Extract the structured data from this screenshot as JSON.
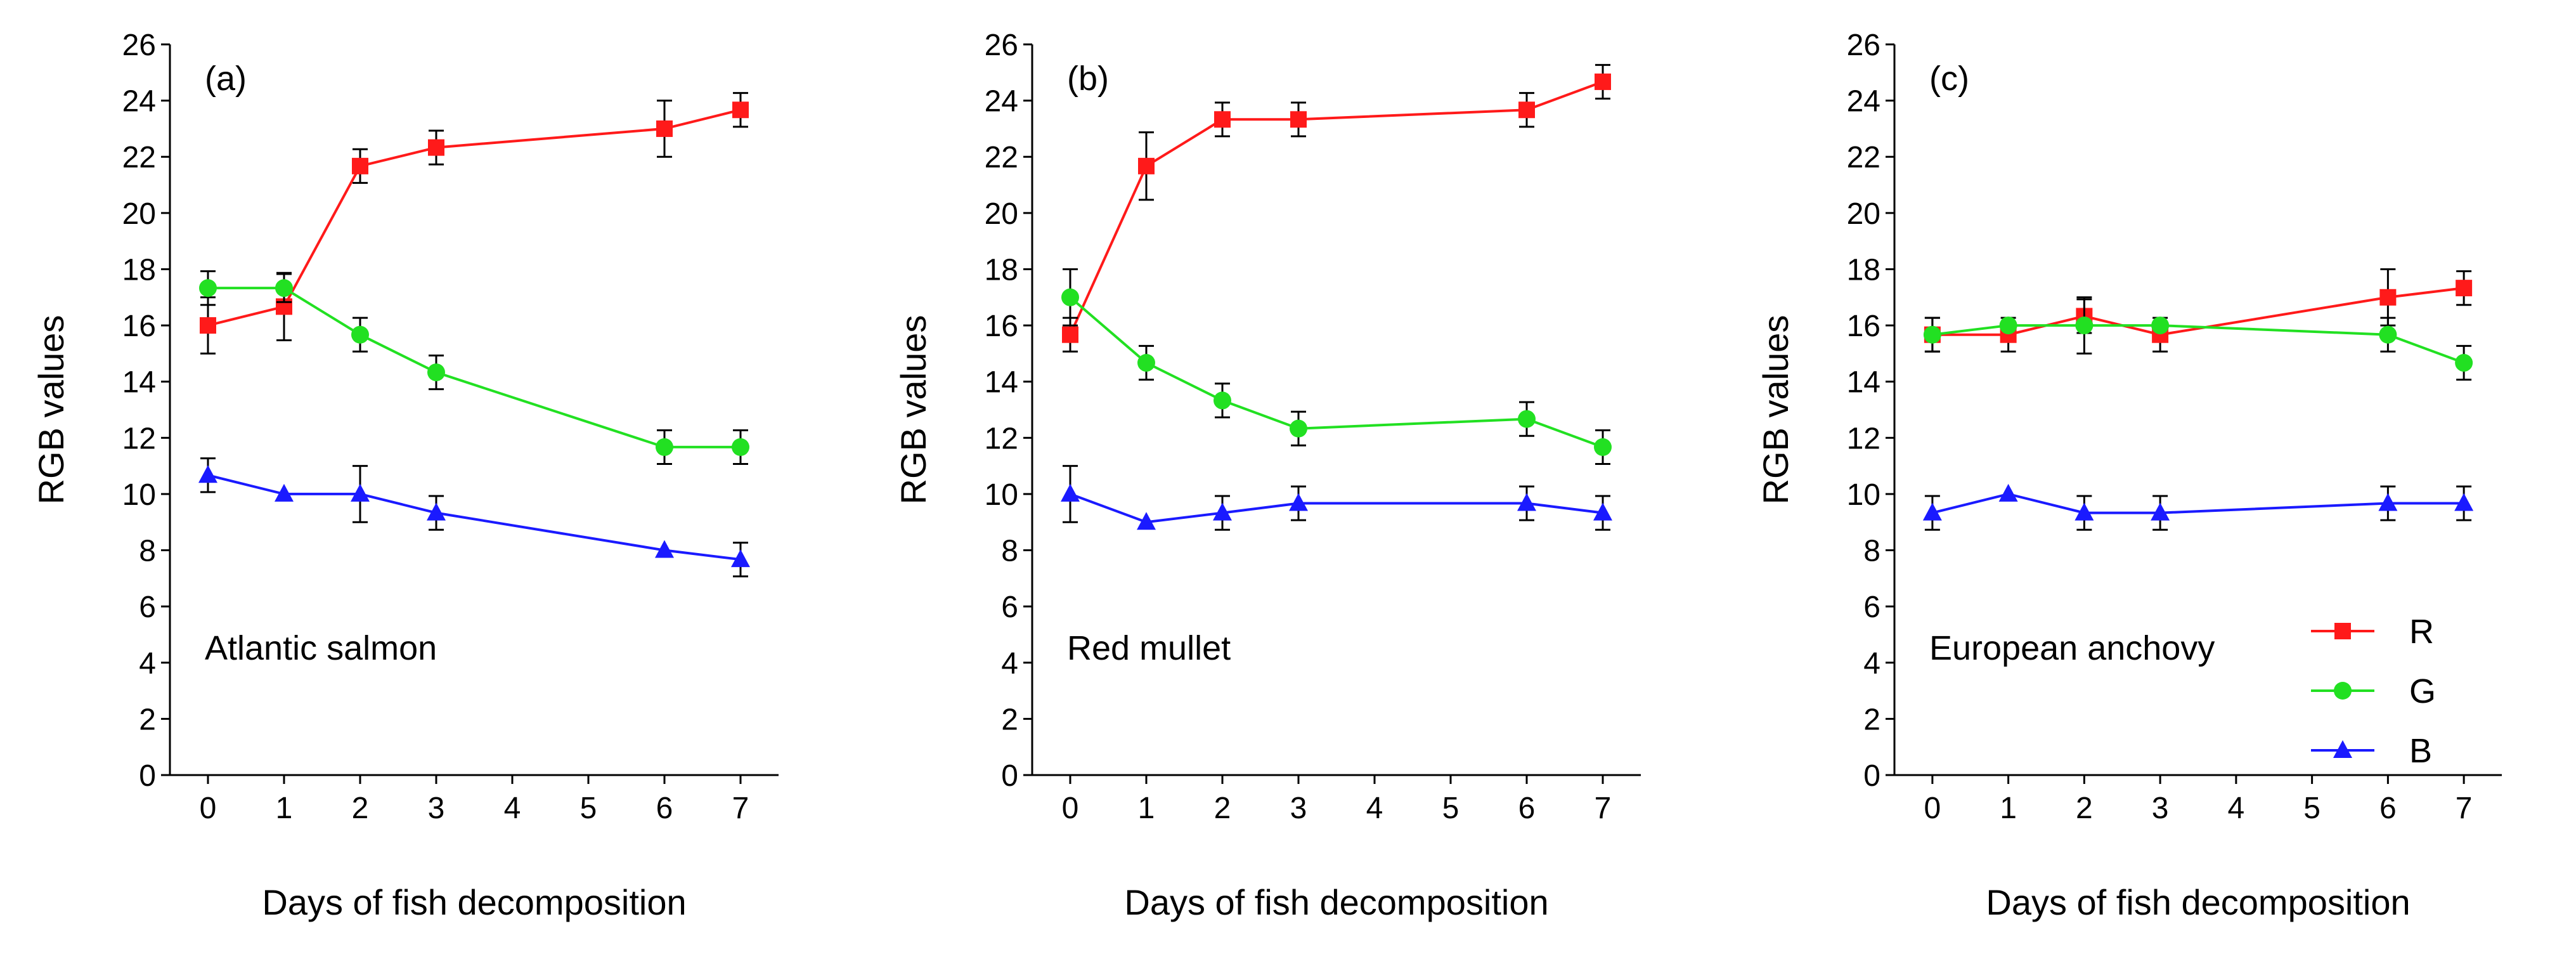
{
  "colors": {
    "R": "#ff1a1a",
    "G": "#22e022",
    "B": "#1a1aff",
    "axis": "#000000"
  },
  "chart_data": [
    {
      "type": "line",
      "panel_label": "(a)",
      "species": "Atlantic salmon",
      "xlabel": "Days of fish decomposition",
      "ylabel": "RGB values",
      "x": [
        0,
        1,
        2,
        3,
        6,
        7
      ],
      "x_ticks": [
        "0",
        "1",
        "2",
        "3",
        "4",
        "5",
        "6",
        "7"
      ],
      "xlim": [
        -0.5,
        7.5
      ],
      "ylim": [
        0,
        26
      ],
      "y_ticks": [
        "0",
        "2",
        "4",
        "6",
        "8",
        "10",
        "12",
        "14",
        "16",
        "18",
        "20",
        "22",
        "24",
        "26"
      ],
      "series": [
        {
          "name": "R",
          "values": [
            16.0,
            16.67,
            21.67,
            22.33,
            23.0,
            23.67
          ],
          "errors": [
            1.0,
            1.2,
            0.6,
            0.6,
            1.0,
            0.6
          ]
        },
        {
          "name": "G",
          "values": [
            17.33,
            17.33,
            15.67,
            14.33,
            11.67,
            11.67
          ],
          "errors": [
            0.6,
            0.5,
            0.6,
            0.6,
            0.6,
            0.6
          ]
        },
        {
          "name": "B",
          "values": [
            10.67,
            10.0,
            10.0,
            9.33,
            8.0,
            7.67
          ],
          "errors": [
            0.6,
            0.0,
            1.0,
            0.6,
            0.0,
            0.6
          ]
        }
      ]
    },
    {
      "type": "line",
      "panel_label": "(b)",
      "species": "Red mullet",
      "xlabel": "Days of fish decomposition",
      "ylabel": "RGB values",
      "x": [
        0,
        1,
        2,
        3,
        6,
        7
      ],
      "x_ticks": [
        "0",
        "1",
        "2",
        "3",
        "4",
        "5",
        "6",
        "7"
      ],
      "xlim": [
        -0.5,
        7.5
      ],
      "ylim": [
        0,
        26
      ],
      "y_ticks": [
        "0",
        "2",
        "4",
        "6",
        "8",
        "10",
        "12",
        "14",
        "16",
        "18",
        "20",
        "22",
        "24",
        "26"
      ],
      "series": [
        {
          "name": "R",
          "values": [
            15.67,
            21.67,
            23.33,
            23.33,
            23.67,
            24.67
          ],
          "errors": [
            0.6,
            1.2,
            0.6,
            0.6,
            0.6,
            0.6
          ]
        },
        {
          "name": "G",
          "values": [
            17.0,
            14.67,
            13.33,
            12.33,
            12.67,
            11.67
          ],
          "errors": [
            1.0,
            0.6,
            0.6,
            0.6,
            0.6,
            0.6
          ]
        },
        {
          "name": "B",
          "values": [
            10.0,
            9.0,
            9.33,
            9.67,
            9.67,
            9.33
          ],
          "errors": [
            1.0,
            0.0,
            0.6,
            0.6,
            0.6,
            0.6
          ]
        }
      ]
    },
    {
      "type": "line",
      "panel_label": "(c)",
      "species": "European anchovy",
      "xlabel": "Days of fish decomposition",
      "ylabel": "RGB values",
      "x": [
        0,
        1,
        2,
        3,
        6,
        7
      ],
      "x_ticks": [
        "0",
        "1",
        "2",
        "3",
        "4",
        "5",
        "6",
        "7"
      ],
      "xlim": [
        -0.5,
        7.5
      ],
      "ylim": [
        0,
        26
      ],
      "y_ticks": [
        "0",
        "2",
        "4",
        "6",
        "8",
        "10",
        "12",
        "14",
        "16",
        "18",
        "20",
        "22",
        "24",
        "26"
      ],
      "legend": [
        "R",
        "G",
        "B"
      ],
      "legend_position": "bottom-right",
      "series": [
        {
          "name": "R",
          "values": [
            15.67,
            15.67,
            16.33,
            15.67,
            17.0,
            17.33
          ],
          "errors": [
            0.6,
            0.6,
            0.6,
            0.6,
            1.0,
            0.6
          ]
        },
        {
          "name": "G",
          "values": [
            15.67,
            16.0,
            16.0,
            16.0,
            15.67,
            14.67
          ],
          "errors": [
            0.6,
            0.0,
            1.0,
            0.0,
            0.6,
            0.6
          ]
        },
        {
          "name": "B",
          "values": [
            9.33,
            10.0,
            9.33,
            9.33,
            9.67,
            9.67
          ],
          "errors": [
            0.6,
            0.0,
            0.6,
            0.6,
            0.6,
            0.6
          ]
        }
      ]
    }
  ]
}
